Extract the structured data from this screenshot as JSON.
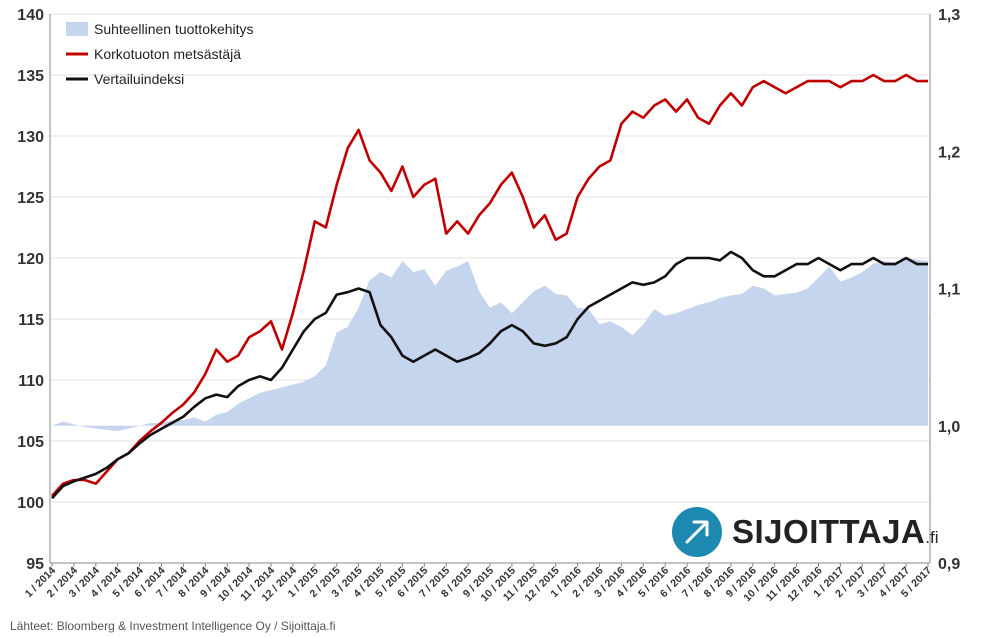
{
  "chart_data": {
    "type": "line",
    "left_axis": {
      "min": 95,
      "max": 140,
      "step": 5,
      "tick_labels": [
        "95",
        "100",
        "105",
        "110",
        "115",
        "120",
        "125",
        "130",
        "135",
        "140"
      ]
    },
    "right_axis": {
      "min": 0.9,
      "max": 1.3,
      "tick_values": [
        0.9,
        1.0,
        1.1,
        1.2,
        1.3
      ],
      "tick_labels": [
        "0,9",
        "1,0",
        "1,1",
        "1,2",
        "1,3"
      ]
    },
    "x_labels": [
      "1 / 2014",
      "2 / 2014",
      "3 / 2014",
      "4 / 2014",
      "5 / 2014",
      "6 / 2014",
      "7 / 2014",
      "8 / 2014",
      "9 / 2014",
      "10 / 2014",
      "11 / 2014",
      "12 / 2014",
      "1 / 2015",
      "2 / 2015",
      "3 / 2015",
      "4 / 2015",
      "5 / 2015",
      "6 / 2015",
      "7 / 2015",
      "8 / 2015",
      "9 / 2015",
      "10 / 2015",
      "11 / 2015",
      "12 / 2015",
      "1 / 2016",
      "2 / 2016",
      "3 / 2016",
      "4 / 2016",
      "5 / 2016",
      "6 / 2016",
      "7 / 2016",
      "8 / 2016",
      "9 / 2016",
      "10 / 2016",
      "11 / 2016",
      "12 / 2016",
      "1 / 2017",
      "2 / 2017",
      "3 / 2017",
      "4 / 2017",
      "5 / 2017"
    ],
    "grid": true,
    "legend_position": "top-left",
    "series": [
      {
        "name": "Suhteellinen tuottokehitys",
        "type": "area",
        "axis": "right",
        "color": "#c5d5ee",
        "x": [
          0,
          0.5,
          1,
          1.5,
          2,
          2.5,
          3,
          3.5,
          4,
          4.5,
          5,
          5.5,
          6,
          6.5,
          7,
          7.5,
          8,
          8.5,
          9,
          9.5,
          10,
          10.5,
          11,
          11.5,
          12,
          12.5,
          13,
          13.5,
          14,
          14.5,
          15,
          15.5,
          16,
          16.5,
          17,
          17.5,
          18,
          18.5,
          19,
          19.5,
          20,
          20.5,
          21,
          21.5,
          22,
          22.5,
          23,
          23.5,
          24,
          24.5,
          25,
          25.5,
          26,
          26.5,
          27,
          27.5,
          28,
          28.5,
          29,
          29.5,
          30,
          30.5,
          31,
          31.5,
          32,
          32.5,
          33,
          33.5,
          34,
          34.5,
          35,
          35.5,
          36,
          36.5,
          37,
          37.5,
          38,
          38.5,
          39,
          39.5,
          40
        ],
        "values": [
          1.0,
          1.003,
          1.001,
          0.999,
          0.998,
          0.997,
          0.996,
          0.998,
          1.0,
          1.002,
          1.002,
          1.004,
          1.004,
          1.006,
          1.003,
          1.008,
          1.01,
          1.016,
          1.02,
          1.024,
          1.026,
          1.028,
          1.03,
          1.032,
          1.036,
          1.044,
          1.068,
          1.072,
          1.086,
          1.106,
          1.112,
          1.108,
          1.12,
          1.112,
          1.114,
          1.102,
          1.113,
          1.116,
          1.12,
          1.098,
          1.086,
          1.09,
          1.082,
          1.09,
          1.098,
          1.102,
          1.096,
          1.095,
          1.086,
          1.085,
          1.074,
          1.076,
          1.072,
          1.066,
          1.074,
          1.085,
          1.08,
          1.082,
          1.085,
          1.088,
          1.09,
          1.093,
          1.095,
          1.096,
          1.102,
          1.1,
          1.095,
          1.096,
          1.097,
          1.1,
          1.108,
          1.116,
          1.105,
          1.108,
          1.112,
          1.118,
          1.12,
          1.119,
          1.122,
          1.121,
          1.12
        ]
      },
      {
        "name": "Korkotuoton metsästäjä",
        "type": "line",
        "axis": "left",
        "color": "#c00000",
        "x": [
          0,
          0.5,
          1,
          1.5,
          2,
          2.5,
          3,
          3.5,
          4,
          4.5,
          5,
          5.5,
          6,
          6.5,
          7,
          7.5,
          8,
          8.5,
          9,
          9.5,
          10,
          10.5,
          11,
          11.5,
          12,
          12.5,
          13,
          13.5,
          14,
          14.5,
          15,
          15.5,
          16,
          16.5,
          17,
          17.5,
          18,
          18.5,
          19,
          19.5,
          20,
          20.5,
          21,
          21.5,
          22,
          22.5,
          23,
          23.5,
          24,
          24.5,
          25,
          25.5,
          26,
          26.5,
          27,
          27.5,
          28,
          28.5,
          29,
          29.5,
          30,
          30.5,
          31,
          31.5,
          32,
          32.5,
          33,
          33.5,
          34,
          34.5,
          35,
          35.5,
          36,
          36.5,
          37,
          37.5,
          38,
          38.5,
          39,
          39.5,
          40
        ],
        "values": [
          100.5,
          101.5,
          101.8,
          101.8,
          101.5,
          102.5,
          103.5,
          104.0,
          105.0,
          105.8,
          106.5,
          107.3,
          108.0,
          109.0,
          110.5,
          112.5,
          111.5,
          112.0,
          113.5,
          114.0,
          114.8,
          112.5,
          115.5,
          119.0,
          123.0,
          122.5,
          126.0,
          129.0,
          130.5,
          128.0,
          127.0,
          125.5,
          127.5,
          125.0,
          126.0,
          126.5,
          122.0,
          123.0,
          122.0,
          123.5,
          124.5,
          126.0,
          127.0,
          125.0,
          122.5,
          123.5,
          121.5,
          122.0,
          125.0,
          126.5,
          127.5,
          128.0,
          131.0,
          132.0,
          131.5,
          132.5,
          133.0,
          132.0,
          133.0,
          131.5,
          131.0,
          132.5,
          133.5,
          132.5,
          134.0,
          134.5,
          134.0,
          133.5,
          134.0,
          134.5,
          134.5,
          134.5,
          134.0,
          134.5,
          134.5,
          135.0,
          134.5,
          134.5,
          135.0,
          134.5,
          134.5
        ]
      },
      {
        "name": "Vertailuindeksi",
        "type": "line",
        "axis": "left",
        "color": "#111111",
        "x": [
          0,
          0.5,
          1,
          1.5,
          2,
          2.5,
          3,
          3.5,
          4,
          4.5,
          5,
          5.5,
          6,
          6.5,
          7,
          7.5,
          8,
          8.5,
          9,
          9.5,
          10,
          10.5,
          11,
          11.5,
          12,
          12.5,
          13,
          13.5,
          14,
          14.5,
          15,
          15.5,
          16,
          16.5,
          17,
          17.5,
          18,
          18.5,
          19,
          19.5,
          20,
          20.5,
          21,
          21.5,
          22,
          22.5,
          23,
          23.5,
          24,
          24.5,
          25,
          25.5,
          26,
          26.5,
          27,
          27.5,
          28,
          28.5,
          29,
          29.5,
          30,
          30.5,
          31,
          31.5,
          32,
          32.5,
          33,
          33.5,
          34,
          34.5,
          35,
          35.5,
          36,
          36.5,
          37,
          37.5,
          38,
          38.5,
          39,
          39.5,
          40
        ],
        "values": [
          100.3,
          101.3,
          101.7,
          102.0,
          102.3,
          102.8,
          103.5,
          104.0,
          104.8,
          105.5,
          106.0,
          106.5,
          107.0,
          107.8,
          108.5,
          108.8,
          108.6,
          109.5,
          110.0,
          110.3,
          110.0,
          111.0,
          112.5,
          114.0,
          115.0,
          115.5,
          117.0,
          117.2,
          117.5,
          117.2,
          114.5,
          113.5,
          112.0,
          111.5,
          112.0,
          112.5,
          112.0,
          111.5,
          111.8,
          112.2,
          113.0,
          114.0,
          114.5,
          114.0,
          113.0,
          112.8,
          113.0,
          113.5,
          115.0,
          116.0,
          116.5,
          117.0,
          117.5,
          118.0,
          117.8,
          118.0,
          118.5,
          119.5,
          120.0,
          120.0,
          120.0,
          119.8,
          120.5,
          120.0,
          119.0,
          118.5,
          118.5,
          119.0,
          119.5,
          119.5,
          120.0,
          119.5,
          119.0,
          119.5,
          119.5,
          120.0,
          119.5,
          119.5,
          120.0,
          119.5,
          119.5
        ]
      }
    ]
  },
  "footer": {
    "source": "Lähteet: Bloomberg & Investment Intelligence Oy / Sijoittaja.fi",
    "logo_text": "SIJOITTAJA",
    "logo_suffix": ".fi",
    "logo_icon": "arrow-up-right-icon"
  }
}
